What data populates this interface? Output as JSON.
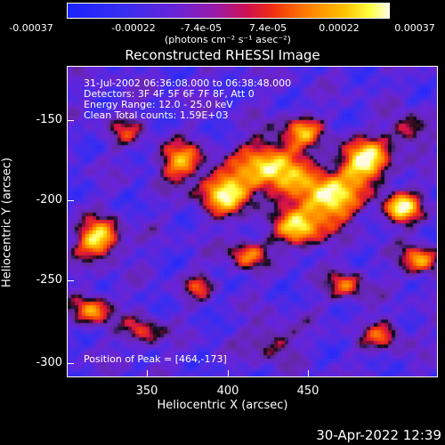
{
  "colorbar": {
    "ticks": [
      "-0.00037",
      "-0.00022",
      "-7.4e-05",
      "7.4e-05",
      "0.00022",
      "0.00037"
    ],
    "unit": "(photons cm⁻² s⁻¹ asec⁻²)"
  },
  "title": "Reconstructed RHESSI Image",
  "annotations": {
    "line1": "31-Jul-2002 06:36:08.000 to 06:38:48.000",
    "line2": "Detectors: 3F 4F 5F 6F 7F 8F, Att 0",
    "line3": "Energy Range: 12.0 - 25.0 keV",
    "line4": "Clean     Total counts: 1.59E+03",
    "peak": "Position of Peak = [464,-173]"
  },
  "axes": {
    "xlabel": "Heliocentric X (arcsec)",
    "ylabel": "Heliocentric Y (arcsec)",
    "xticks": [
      "350",
      "400",
      "450"
    ],
    "yticks": [
      "-150",
      "-200",
      "-250",
      "-300"
    ]
  },
  "timestamp": "30-Apr-2022 12:39"
}
